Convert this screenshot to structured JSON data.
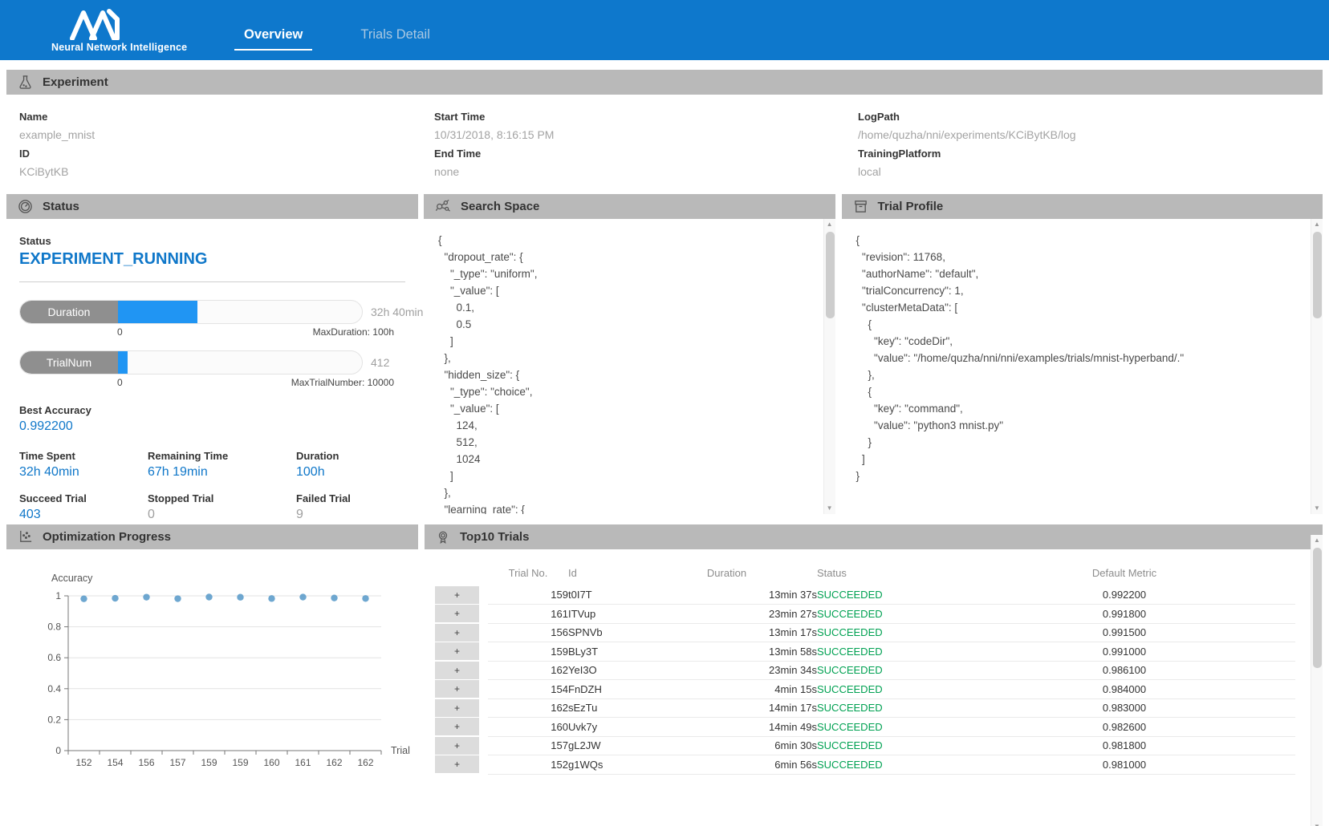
{
  "header": {
    "brand": "Neural Network Intelligence",
    "tabs": [
      {
        "label": "Overview",
        "active": true
      },
      {
        "label": "Trials Detail",
        "active": false
      }
    ]
  },
  "experiment": {
    "title": "Experiment",
    "columns": [
      {
        "fields": [
          {
            "label": "Name",
            "value": "example_mnist"
          },
          {
            "label": "ID",
            "value": "KCiBytKB"
          }
        ]
      },
      {
        "fields": [
          {
            "label": "Start Time",
            "value": "10/31/2018, 8:16:15 PM"
          },
          {
            "label": "End Time",
            "value": "none"
          }
        ]
      },
      {
        "fields": [
          {
            "label": "LogPath",
            "value": "/home/quzha/nni/experiments/KCiBytKB/log"
          },
          {
            "label": "TrainingPlatform",
            "value": "local"
          }
        ]
      }
    ]
  },
  "status_panel": {
    "title": "Status",
    "status_label": "Status",
    "status_value": "EXPERIMENT_RUNNING",
    "bars": [
      {
        "label": "Duration",
        "value_text": "32h 40min",
        "min": "0",
        "max_text": "MaxDuration: 100h",
        "percent": 32.7
      },
      {
        "label": "TrialNum",
        "value_text": "412",
        "min": "0",
        "max_text": "MaxTrialNumber: 10000",
        "percent": 4.1
      }
    ],
    "best_accuracy": {
      "label": "Best Accuracy",
      "value": "0.992200"
    },
    "stats": [
      {
        "label": "Time Spent",
        "value": "32h 40min",
        "tone": "blue"
      },
      {
        "label": "Remaining Time",
        "value": "67h 19min",
        "tone": "blue"
      },
      {
        "label": "Duration",
        "value": "100h",
        "tone": "blue"
      },
      {
        "label": "Succeed Trial",
        "value": "403",
        "tone": "blue"
      },
      {
        "label": "Stopped Trial",
        "value": "0",
        "tone": "gray"
      },
      {
        "label": "Failed Trial",
        "value": "9",
        "tone": "gray"
      }
    ]
  },
  "search_space": {
    "title": "Search Space",
    "json": "{\n  \"dropout_rate\": {\n    \"_type\": \"uniform\",\n    \"_value\": [\n      0.1,\n      0.5\n    ]\n  },\n  \"hidden_size\": {\n    \"_type\": \"choice\",\n    \"_value\": [\n      124,\n      512,\n      1024\n    ]\n  },\n  \"learning_rate\": {"
  },
  "trial_profile": {
    "title": "Trial Profile",
    "json": "{\n  \"revision\": 11768,\n  \"authorName\": \"default\",\n  \"trialConcurrency\": 1,\n  \"clusterMetaData\": [\n    {\n      \"key\": \"codeDir\",\n      \"value\": \"/home/quzha/nni/nni/examples/trials/mnist-hyperband/.\"\n    },\n    {\n      \"key\": \"command\",\n      \"value\": \"python3 mnist.py\"\n    }\n  ]\n}"
  },
  "optimization": {
    "title": "Optimization Progress"
  },
  "chart_data": {
    "type": "scatter",
    "title": "Optimization Progress",
    "xlabel": "Trial",
    "ylabel": "Accuracy",
    "categories": [
      "152",
      "154",
      "156",
      "157",
      "159",
      "159",
      "160",
      "161",
      "162",
      "162"
    ],
    "values": [
      0.981,
      0.984,
      0.9915,
      0.9818,
      0.9922,
      0.991,
      0.9826,
      0.9918,
      0.9861,
      0.983
    ],
    "ylim": [
      0,
      1
    ],
    "y_ticks": [
      0,
      0.2,
      0.4,
      0.6,
      0.8,
      1
    ],
    "grid": true,
    "legend": null,
    "point_color": "#5598c8"
  },
  "top_trials": {
    "title": "Top10 Trials",
    "expand_symbol": "+",
    "columns": [
      "Trial No.",
      "Id",
      "Duration",
      "Status",
      "Default Metric"
    ],
    "rows": [
      {
        "no": "159",
        "id": "t0I7T",
        "duration": "13min 37s",
        "status": "SUCCEEDED",
        "metric": "0.992200"
      },
      {
        "no": "161",
        "id": "ITVup",
        "duration": "23min 27s",
        "status": "SUCCEEDED",
        "metric": "0.991800"
      },
      {
        "no": "156",
        "id": "SPNVb",
        "duration": "13min 17s",
        "status": "SUCCEEDED",
        "metric": "0.991500"
      },
      {
        "no": "159",
        "id": "BLy3T",
        "duration": "13min 58s",
        "status": "SUCCEEDED",
        "metric": "0.991000"
      },
      {
        "no": "162",
        "id": "YeI3O",
        "duration": "23min 34s",
        "status": "SUCCEEDED",
        "metric": "0.986100"
      },
      {
        "no": "154",
        "id": "FnDZH",
        "duration": "4min 15s",
        "status": "SUCCEEDED",
        "metric": "0.984000"
      },
      {
        "no": "162",
        "id": "sEzTu",
        "duration": "14min 17s",
        "status": "SUCCEEDED",
        "metric": "0.983000"
      },
      {
        "no": "160",
        "id": "Uvk7y",
        "duration": "14min 49s",
        "status": "SUCCEEDED",
        "metric": "0.982600"
      },
      {
        "no": "157",
        "id": "gL2JW",
        "duration": "6min 30s",
        "status": "SUCCEEDED",
        "metric": "0.981800"
      },
      {
        "no": "152",
        "id": "g1WQs",
        "duration": "6min 56s",
        "status": "SUCCEEDED",
        "metric": "0.981000"
      }
    ]
  },
  "colors": {
    "header_blue": "#0e78cc",
    "accent_blue": "#0f77c9",
    "bar_fill_blue": "#2095f3",
    "section_gray": "#b9b9b9",
    "succeeded_green": "#00a152",
    "value_gray": "#9f9f9f",
    "scatter_point": "#5598c8"
  }
}
